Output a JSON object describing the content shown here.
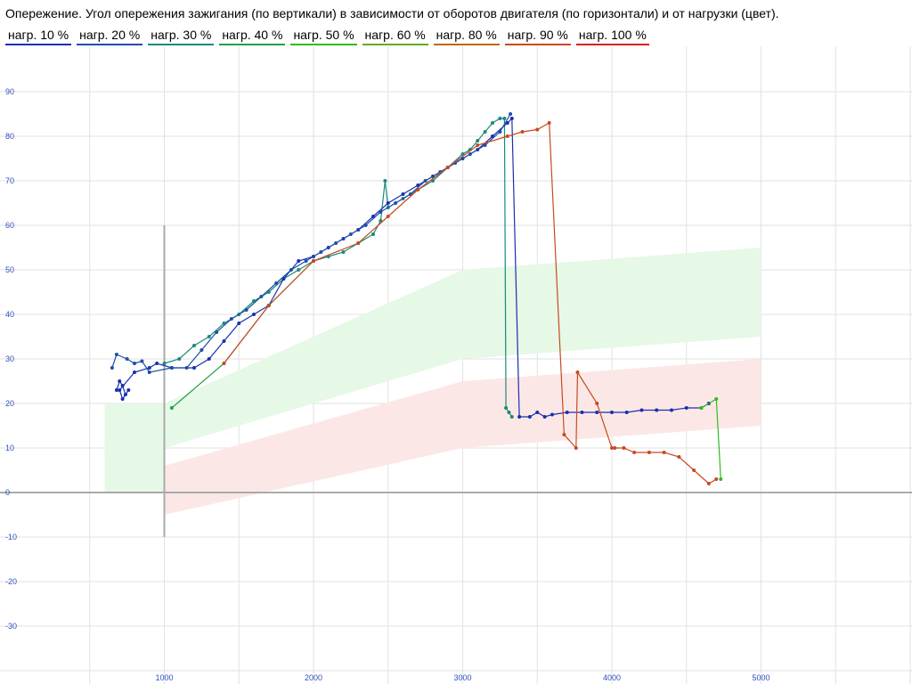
{
  "title": "Опережение. Угол опережения зажигания (по вертикали) в зависимости от оборотов двигателя (по горизонтали) и от нагрузки (цвет).",
  "legend": [
    {
      "label": "нагр. 10 %",
      "color": "#1a2fb0"
    },
    {
      "label": "нагр. 20 %",
      "color": "#1f4fa8"
    },
    {
      "label": "нагр. 30 %",
      "color": "#1a8a7a"
    },
    {
      "label": "нагр. 40 %",
      "color": "#22a04a"
    },
    {
      "label": "нагр. 50 %",
      "color": "#33bb22"
    },
    {
      "label": "нагр. 60 %",
      "color": "#66aa22"
    },
    {
      "label": "нагр. 80 %",
      "color": "#b86a10"
    },
    {
      "label": "нагр. 90 %",
      "color": "#c84a20"
    },
    {
      "label": "нагр. 100 %",
      "color": "#d82020"
    }
  ],
  "chart_data": {
    "type": "line",
    "xlim": [
      0,
      5500
    ],
    "ylim": [
      -40,
      95
    ],
    "x_ticks": [
      1000,
      2000,
      3000,
      4000,
      5000
    ],
    "y_ticks": [
      90,
      80,
      70,
      60,
      50,
      40,
      30,
      20,
      10,
      0,
      -10,
      -20,
      -30
    ],
    "grid": true,
    "legend_position": "top-left",
    "bands": [
      {
        "color": "#e6f8e6",
        "upper": [
          [
            600,
            20
          ],
          [
            1000,
            20
          ],
          [
            3000,
            50
          ],
          [
            5000,
            55
          ]
        ],
        "lower": [
          [
            600,
            0
          ],
          [
            1000,
            0
          ],
          [
            1000,
            10
          ],
          [
            3000,
            30
          ],
          [
            5000,
            35
          ]
        ]
      },
      {
        "color": "#fbe8e6",
        "upper": [
          [
            1000,
            6
          ],
          [
            3000,
            25
          ],
          [
            5000,
            30
          ]
        ],
        "lower": [
          [
            1000,
            -5
          ],
          [
            3000,
            10
          ],
          [
            5000,
            15
          ]
        ]
      }
    ],
    "series": [
      {
        "color": "#1a8a7a",
        "points": [
          [
            1000,
            29
          ],
          [
            1100,
            30
          ],
          [
            1200,
            33
          ],
          [
            1300,
            35
          ],
          [
            1400,
            38
          ],
          [
            1500,
            40
          ],
          [
            1600,
            43
          ],
          [
            1700,
            45
          ],
          [
            1800,
            48
          ],
          [
            1900,
            50
          ],
          [
            2000,
            52
          ],
          [
            2100,
            53
          ],
          [
            2200,
            54
          ],
          [
            2300,
            56
          ],
          [
            2400,
            58
          ],
          [
            2450,
            61
          ],
          [
            2480,
            70
          ],
          [
            2500,
            64
          ],
          [
            2600,
            66
          ],
          [
            2700,
            68
          ],
          [
            2800,
            70
          ],
          [
            2900,
            73
          ],
          [
            3000,
            76
          ],
          [
            3050,
            77
          ],
          [
            3100,
            79
          ],
          [
            3150,
            81
          ],
          [
            3200,
            83
          ],
          [
            3250,
            84
          ],
          [
            3280,
            84
          ],
          [
            3290,
            19
          ],
          [
            3310,
            18
          ],
          [
            3330,
            17
          ]
        ]
      },
      {
        "color": "#1a2fb0",
        "points": [
          [
            680,
            23
          ],
          [
            700,
            25
          ],
          [
            720,
            24
          ],
          [
            740,
            22
          ],
          [
            760,
            23
          ],
          [
            720,
            21
          ],
          [
            700,
            23
          ],
          [
            800,
            27
          ],
          [
            900,
            28
          ],
          [
            950,
            29
          ],
          [
            1050,
            28
          ],
          [
            1200,
            28
          ],
          [
            1300,
            30
          ],
          [
            1400,
            34
          ],
          [
            1500,
            38
          ],
          [
            1600,
            40
          ],
          [
            1700,
            42
          ],
          [
            1800,
            48
          ],
          [
            1900,
            52
          ],
          [
            2000,
            53
          ],
          [
            2100,
            55
          ],
          [
            2200,
            57
          ],
          [
            2300,
            59
          ],
          [
            2400,
            62
          ],
          [
            2500,
            65
          ],
          [
            2600,
            67
          ],
          [
            2700,
            69
          ],
          [
            2800,
            71
          ],
          [
            2900,
            73
          ],
          [
            3000,
            75
          ],
          [
            3100,
            77
          ],
          [
            3200,
            80
          ],
          [
            3300,
            83
          ],
          [
            3330,
            84
          ],
          [
            3380,
            17
          ],
          [
            3450,
            17
          ],
          [
            3500,
            18
          ],
          [
            3550,
            17
          ],
          [
            3600,
            17.5
          ],
          [
            3700,
            18
          ],
          [
            3800,
            18
          ],
          [
            3900,
            18
          ],
          [
            4000,
            18
          ],
          [
            4100,
            18
          ],
          [
            4200,
            18.5
          ],
          [
            4300,
            18.5
          ],
          [
            4400,
            18.5
          ],
          [
            4500,
            19
          ],
          [
            4600,
            19
          ],
          [
            4650,
            20
          ]
        ]
      },
      {
        "color": "#1f4fa8",
        "points": [
          [
            650,
            28
          ],
          [
            680,
            31
          ],
          [
            750,
            30
          ],
          [
            800,
            29
          ],
          [
            850,
            29.5
          ],
          [
            900,
            27
          ],
          [
            1050,
            28
          ],
          [
            1150,
            28
          ],
          [
            1250,
            32
          ],
          [
            1350,
            36
          ],
          [
            1450,
            39
          ],
          [
            1550,
            41
          ],
          [
            1650,
            44
          ],
          [
            1750,
            47
          ],
          [
            1850,
            50
          ],
          [
            1950,
            52
          ],
          [
            2050,
            54
          ],
          [
            2150,
            56
          ],
          [
            2250,
            58
          ],
          [
            2350,
            60
          ],
          [
            2450,
            63
          ],
          [
            2550,
            65
          ],
          [
            2650,
            67
          ],
          [
            2750,
            70
          ],
          [
            2850,
            72
          ],
          [
            2950,
            74
          ],
          [
            3050,
            76
          ],
          [
            3150,
            78
          ],
          [
            3250,
            81
          ],
          [
            3320,
            85
          ]
        ]
      },
      {
        "color": "#22a04a",
        "points": [
          [
            1050,
            19
          ],
          [
            1400,
            29
          ],
          [
            1700,
            42
          ],
          [
            2000,
            52
          ]
        ]
      },
      {
        "color": "#33bb22",
        "points": [
          [
            4600,
            19
          ],
          [
            4700,
            21
          ],
          [
            4730,
            3
          ]
        ]
      },
      {
        "color": "#c84a20",
        "points": [
          [
            1400,
            29
          ],
          [
            1700,
            42
          ],
          [
            2000,
            52
          ],
          [
            2300,
            56
          ],
          [
            2500,
            62
          ],
          [
            2700,
            68
          ],
          [
            2900,
            73
          ],
          [
            3100,
            78
          ],
          [
            3300,
            80
          ],
          [
            3400,
            81
          ],
          [
            3500,
            81.5
          ],
          [
            3580,
            83
          ],
          [
            3680,
            13
          ],
          [
            3760,
            10
          ],
          [
            3770,
            27
          ],
          [
            3900,
            20
          ],
          [
            4000,
            10
          ],
          [
            4020,
            10
          ],
          [
            4080,
            10
          ],
          [
            4150,
            9
          ],
          [
            4250,
            9
          ],
          [
            4350,
            9
          ],
          [
            4450,
            8
          ],
          [
            4550,
            5
          ],
          [
            4650,
            2
          ],
          [
            4700,
            3
          ]
        ]
      }
    ]
  }
}
